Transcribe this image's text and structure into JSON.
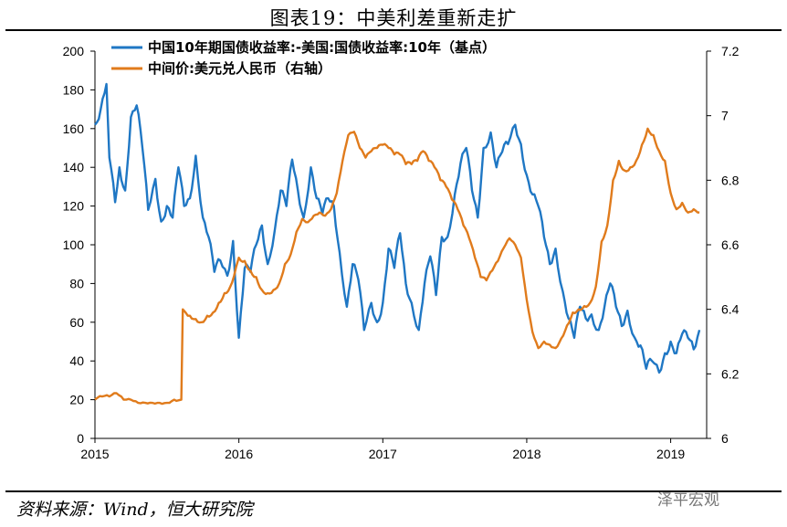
{
  "header": {
    "title": "图表19：中美利差重新走扩"
  },
  "footer": {
    "source": "资料来源：Wind，恒大研究院",
    "watermark": "泽平宏观"
  },
  "chart_data": {
    "type": "line",
    "title": "图表19：中美利差重新走扩",
    "colors": {
      "spread": "#1f77c4",
      "fx": "#e07b1c"
    },
    "x_ticks": [
      "2015",
      "2016",
      "2017",
      "2018",
      "2019"
    ],
    "xlim": [
      2015.0,
      2019.25
    ],
    "y_left": {
      "ylim": [
        0,
        200
      ],
      "ticks": [
        "0",
        "20",
        "40",
        "60",
        "80",
        "100",
        "120",
        "140",
        "160",
        "180",
        "200"
      ]
    },
    "y_right": {
      "ylim": [
        6.0,
        7.2
      ],
      "ticks": [
        "6",
        "6.2",
        "6.4",
        "6.6",
        "6.8",
        "7",
        "7.2"
      ]
    },
    "legend_position": "top-left",
    "series": [
      {
        "name": "中国10年期国债收益率:-美国:国债收益率:10年（基点）",
        "axis": "left",
        "x": [
          2015.0,
          2015.04,
          2015.08,
          2015.1,
          2015.14,
          2015.17,
          2015.21,
          2015.25,
          2015.29,
          2015.33,
          2015.37,
          2015.42,
          2015.46,
          2015.5,
          2015.54,
          2015.58,
          2015.62,
          2015.66,
          2015.7,
          2015.75,
          2015.79,
          2015.83,
          2015.87,
          2015.92,
          2015.96,
          2016.0,
          2016.04,
          2016.08,
          2016.12,
          2016.16,
          2016.2,
          2016.25,
          2016.29,
          2016.33,
          2016.37,
          2016.41,
          2016.45,
          2016.5,
          2016.54,
          2016.58,
          2016.62,
          2016.66,
          2016.7,
          2016.75,
          2016.79,
          2016.83,
          2016.87,
          2016.92,
          2016.96,
          2017.0,
          2017.04,
          2017.08,
          2017.12,
          2017.16,
          2017.2,
          2017.25,
          2017.29,
          2017.33,
          2017.37,
          2017.41,
          2017.45,
          2017.5,
          2017.54,
          2017.58,
          2017.62,
          2017.66,
          2017.7,
          2017.75,
          2017.79,
          2017.83,
          2017.87,
          2017.92,
          2017.96,
          2018.0,
          2018.04,
          2018.08,
          2018.12,
          2018.16,
          2018.2,
          2018.25,
          2018.29,
          2018.33,
          2018.37,
          2018.41,
          2018.45,
          2018.5,
          2018.54,
          2018.58,
          2018.62,
          2018.66,
          2018.7,
          2018.75,
          2018.79,
          2018.83,
          2018.87,
          2018.92,
          2018.96,
          2019.0,
          2019.04,
          2019.08,
          2019.12,
          2019.16,
          2019.2
        ],
        "values": [
          162,
          170,
          183,
          145,
          122,
          140,
          128,
          166,
          172,
          150,
          118,
          134,
          112,
          120,
          114,
          140,
          120,
          124,
          146,
          114,
          104,
          86,
          92,
          84,
          102,
          52,
          88,
          86,
          100,
          110,
          90,
          108,
          128,
          120,
          144,
          128,
          114,
          140,
          124,
          116,
          124,
          120,
          96,
          68,
          90,
          82,
          56,
          70,
          60,
          70,
          98,
          88,
          106,
          80,
          70,
          56,
          80,
          94,
          74,
          104,
          104,
          126,
          142,
          150,
          128,
          114,
          150,
          158,
          140,
          148,
          152,
          162,
          152,
          136,
          126,
          120,
          104,
          90,
          98,
          76,
          62,
          52,
          68,
          62,
          64,
          56,
          68,
          80,
          68,
          58,
          66,
          52,
          48,
          36,
          40,
          34,
          44,
          50,
          44,
          54,
          52,
          46,
          56
        ]
      },
      {
        "name": "中间价:美元兑人民币（右轴）",
        "axis": "right",
        "x": [
          2015.0,
          2015.05,
          2015.1,
          2015.15,
          2015.2,
          2015.25,
          2015.3,
          2015.35,
          2015.4,
          2015.45,
          2015.5,
          2015.55,
          2015.6,
          2015.61,
          2015.63,
          2015.66,
          2015.7,
          2015.74,
          2015.78,
          2015.82,
          2015.86,
          2015.9,
          2015.94,
          2015.98,
          2016.0,
          2016.04,
          2016.08,
          2016.12,
          2016.16,
          2016.2,
          2016.24,
          2016.28,
          2016.32,
          2016.36,
          2016.4,
          2016.44,
          2016.48,
          2016.52,
          2016.56,
          2016.6,
          2016.64,
          2016.68,
          2016.72,
          2016.76,
          2016.8,
          2016.84,
          2016.88,
          2016.92,
          2016.96,
          2017.0,
          2017.04,
          2017.08,
          2017.12,
          2017.16,
          2017.2,
          2017.24,
          2017.28,
          2017.32,
          2017.36,
          2017.4,
          2017.44,
          2017.48,
          2017.52,
          2017.56,
          2017.6,
          2017.64,
          2017.68,
          2017.72,
          2017.76,
          2017.8,
          2017.84,
          2017.88,
          2017.92,
          2017.96,
          2018.0,
          2018.04,
          2018.08,
          2018.12,
          2018.16,
          2018.2,
          2018.24,
          2018.28,
          2018.32,
          2018.36,
          2018.4,
          2018.44,
          2018.48,
          2018.52,
          2018.56,
          2018.6,
          2018.64,
          2018.68,
          2018.72,
          2018.76,
          2018.8,
          2018.84,
          2018.88,
          2018.92,
          2018.96,
          2019.0,
          2019.04,
          2019.08,
          2019.12,
          2019.16,
          2019.2
        ],
        "values": [
          6.12,
          6.13,
          6.13,
          6.14,
          6.12,
          6.12,
          6.11,
          6.11,
          6.11,
          6.11,
          6.11,
          6.12,
          6.12,
          6.4,
          6.39,
          6.38,
          6.37,
          6.36,
          6.38,
          6.39,
          6.42,
          6.45,
          6.47,
          6.53,
          6.56,
          6.55,
          6.52,
          6.5,
          6.46,
          6.45,
          6.46,
          6.48,
          6.54,
          6.57,
          6.64,
          6.68,
          6.67,
          6.69,
          6.7,
          6.69,
          6.71,
          6.76,
          6.86,
          6.94,
          6.95,
          6.9,
          6.87,
          6.89,
          6.9,
          6.91,
          6.9,
          6.88,
          6.88,
          6.85,
          6.85,
          6.86,
          6.89,
          6.86,
          6.84,
          6.8,
          6.78,
          6.74,
          6.71,
          6.66,
          6.62,
          6.56,
          6.5,
          6.49,
          6.52,
          6.55,
          6.59,
          6.62,
          6.6,
          6.56,
          6.43,
          6.33,
          6.28,
          6.3,
          6.29,
          6.28,
          6.31,
          6.35,
          6.39,
          6.4,
          6.41,
          6.42,
          6.47,
          6.61,
          6.66,
          6.8,
          6.86,
          6.83,
          6.84,
          6.86,
          6.91,
          6.96,
          6.94,
          6.89,
          6.86,
          6.76,
          6.71,
          6.73,
          6.7,
          6.71,
          6.7
        ]
      }
    ]
  }
}
